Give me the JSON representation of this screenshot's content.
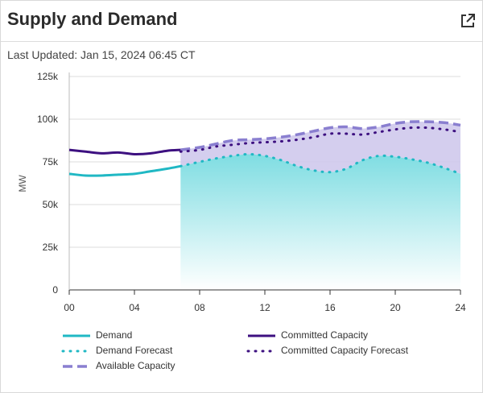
{
  "header": {
    "title": "Supply and Demand",
    "updated_label": "Last Updated: Jan 15, 2024 06:45 CT",
    "expand_icon": "external-link-icon"
  },
  "chart_data": {
    "type": "line",
    "ylabel": "MW",
    "xlabel": "",
    "xlim": [
      0,
      24
    ],
    "ylim": [
      0,
      125000
    ],
    "x_ticks": [
      "00",
      "04",
      "08",
      "12",
      "16",
      "20",
      "24"
    ],
    "y_ticks": [
      "0",
      "25k",
      "50k",
      "75k",
      "100k",
      "125k"
    ],
    "grid": "horizontal",
    "legend_position": "bottom",
    "colors": {
      "demand": "#20b8c4",
      "committed": "#3d1080",
      "available": "#8a7fd0",
      "band_fill": "#cfc9ec",
      "demand_fill_top": "#7fdde2",
      "demand_fill_bottom": "#ffffff"
    },
    "series": [
      {
        "name": "Demand",
        "style": "solid",
        "x": [
          0,
          1,
          2,
          3,
          4,
          5,
          6,
          6.83
        ],
        "values": [
          68000,
          67000,
          67000,
          67500,
          68000,
          69500,
          71000,
          72500
        ]
      },
      {
        "name": "Demand Forecast",
        "style": "dotted",
        "x": [
          6.83,
          8,
          9,
          10,
          11,
          12,
          13,
          14,
          15,
          16,
          17,
          18,
          19,
          20,
          21,
          22,
          23,
          24
        ],
        "values": [
          72500,
          75000,
          77000,
          78500,
          79500,
          78500,
          76000,
          72500,
          70000,
          69000,
          71000,
          76000,
          78500,
          78000,
          76500,
          74500,
          71500,
          68000
        ]
      },
      {
        "name": "Committed Capacity",
        "style": "solid",
        "x": [
          0,
          1,
          2,
          3,
          4,
          5,
          6,
          6.83
        ],
        "values": [
          82000,
          81000,
          80000,
          80500,
          79500,
          80000,
          81500,
          82000
        ]
      },
      {
        "name": "Committed Capacity Forecast",
        "style": "dotted",
        "x": [
          6.83,
          8,
          9,
          10,
          11,
          12,
          13,
          14,
          15,
          16,
          17,
          18,
          19,
          20,
          21,
          22,
          23,
          24
        ],
        "values": [
          81000,
          82000,
          84000,
          85000,
          86000,
          86500,
          87000,
          88000,
          89500,
          91500,
          91500,
          91000,
          92500,
          94000,
          95000,
          95000,
          94000,
          92500
        ]
      },
      {
        "name": "Available Capacity",
        "style": "dashed",
        "x": [
          6.83,
          8,
          9,
          10,
          11,
          12,
          13,
          14,
          15,
          16,
          17,
          18,
          19,
          20,
          21,
          22,
          23,
          24
        ],
        "values": [
          82000,
          83500,
          85500,
          87500,
          88000,
          88500,
          89500,
          91000,
          93000,
          95000,
          95500,
          94500,
          95500,
          97500,
          98500,
          98500,
          98000,
          96500
        ]
      }
    ]
  }
}
